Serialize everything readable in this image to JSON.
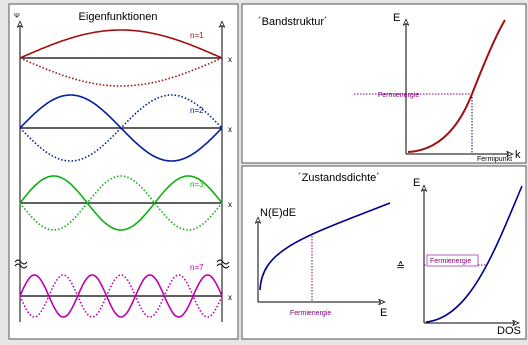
{
  "eigen": {
    "title": "Eigenfunktionen",
    "axis_label": "Ψ",
    "modes": [
      {
        "label": "n=1",
        "x_label": "x"
      },
      {
        "label": "n=2",
        "x_label": "x"
      },
      {
        "label": "n=3",
        "x_label": "x"
      },
      {
        "label": "n=7",
        "x_label": "x"
      }
    ]
  },
  "band": {
    "title": "´Bandstruktur´",
    "y_label": "E",
    "x_label": "k",
    "fermi_energy": "Fermienergie",
    "fermi_point": "Fermipunkt"
  },
  "dos": {
    "title": "´Zustandsdichte´",
    "y_label": "N(E)dE",
    "x_label": "E",
    "fermi_energy": "Fermienergie",
    "equiv": "≙",
    "rotated": {
      "y_label": "E",
      "x_label": "DOS",
      "fermi_energy": "Fermienergie"
    }
  }
}
